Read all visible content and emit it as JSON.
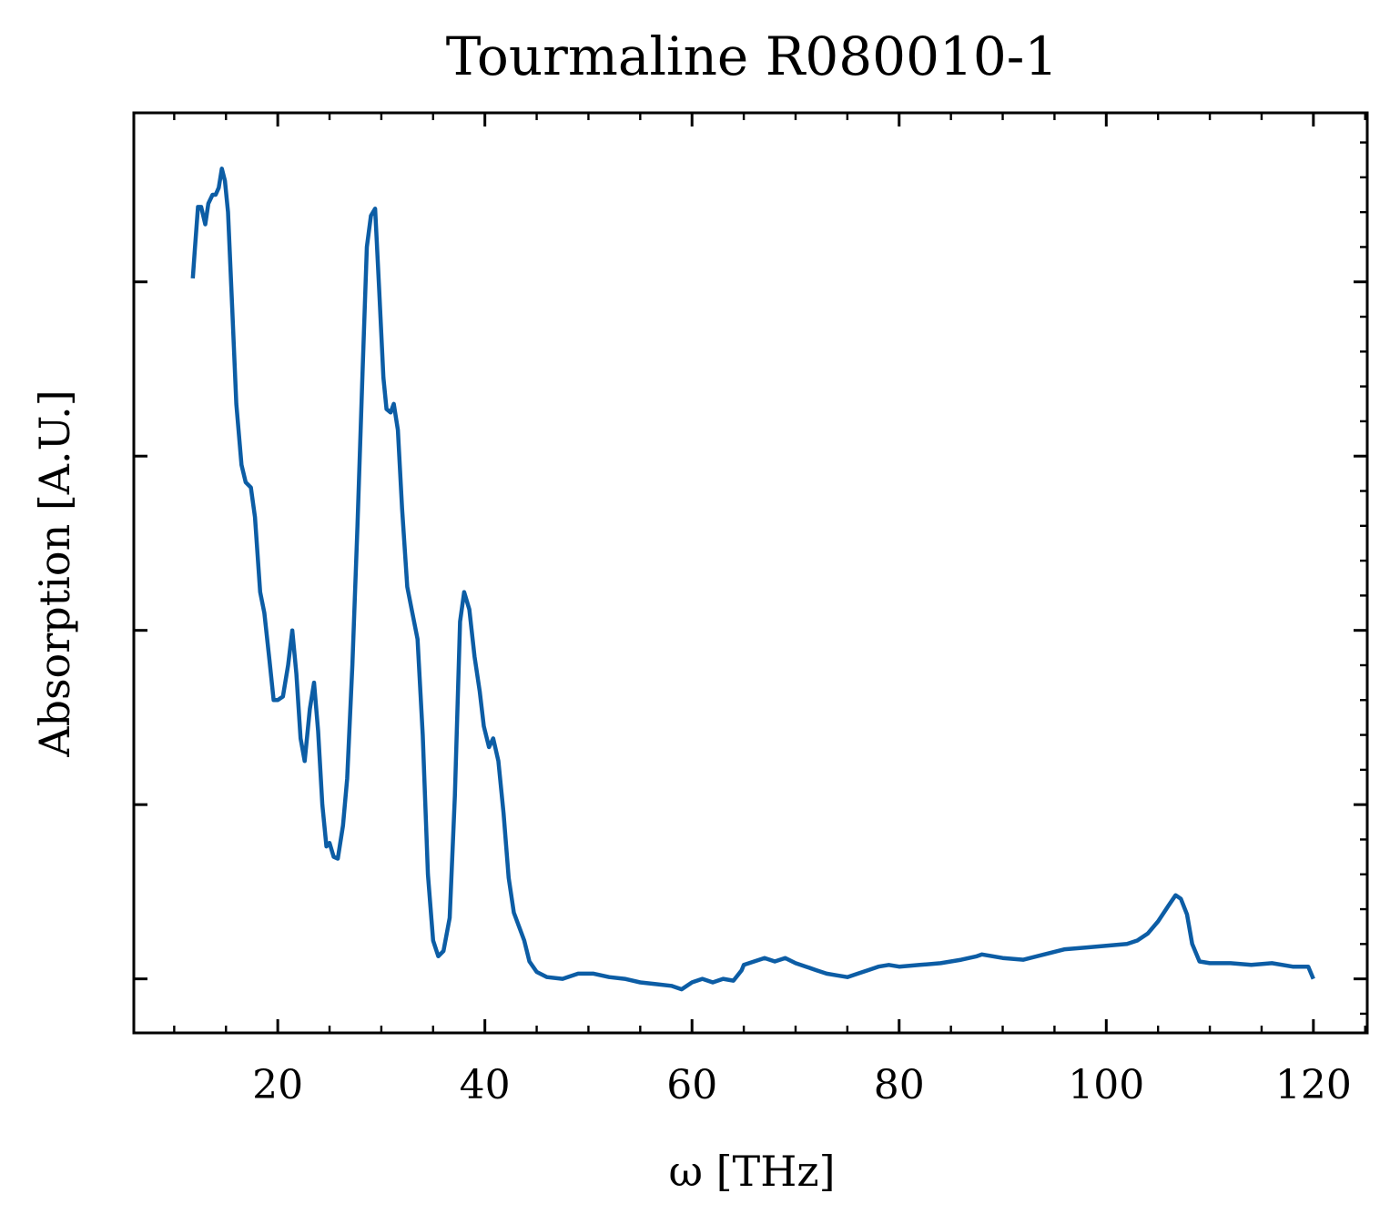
{
  "chart_data": {
    "type": "line",
    "title": "Tourmaline R080010-1",
    "xlabel": "ω [THz]",
    "ylabel": "Absorption [A.U.]",
    "xlim": [
      6.1,
      125.2
    ],
    "ylim": [
      -0.31,
      4.97
    ],
    "x_ticks": [
      20,
      40,
      60,
      80,
      100,
      120
    ],
    "x_tick_labels": [
      "20",
      "40",
      "60",
      "80",
      "100",
      "120"
    ],
    "x_minor_step": 5,
    "y_ticks": [
      0,
      1,
      2,
      3,
      4
    ],
    "y_minor_step": 0.2,
    "y_tick_labels_shown": false,
    "grid": false,
    "legend": "none",
    "series": [
      {
        "color": "#0C5DA5",
        "x": [
          11.8,
          12.0,
          12.3,
          12.6,
          13.0,
          13.3,
          13.7,
          14.0,
          14.3,
          14.6,
          14.9,
          15.2,
          15.6,
          16.0,
          16.5,
          16.9,
          17.4,
          17.8,
          18.3,
          18.7,
          19.2,
          19.6,
          20.0,
          20.5,
          21.0,
          21.4,
          21.8,
          22.2,
          22.6,
          23.1,
          23.5,
          23.9,
          24.3,
          24.7,
          25.0,
          25.4,
          25.8,
          26.3,
          26.7,
          27.2,
          27.7,
          28.2,
          28.6,
          29.0,
          29.4,
          29.8,
          30.2,
          30.5,
          30.9,
          31.2,
          31.6,
          32.0,
          32.5,
          33.0,
          33.5,
          34.0,
          34.5,
          35.0,
          35.5,
          36.0,
          36.6,
          37.1,
          37.6,
          38.0,
          38.5,
          39.0,
          39.5,
          39.9,
          40.4,
          40.8,
          41.3,
          41.8,
          42.3,
          42.8,
          43.3,
          43.8,
          44.3,
          45.0,
          46.0,
          47.5,
          49.0,
          50.5,
          52.0,
          53.5,
          55.0,
          56.5,
          58.0,
          59.0,
          60.0,
          61.0,
          62.0,
          63.0,
          64.0,
          64.8,
          65.0,
          66.0,
          67.0,
          68.0,
          69.0,
          70.0,
          71.0,
          72.0,
          73.0,
          74.0,
          75.0,
          76.0,
          77.0,
          78.0,
          79.0,
          80.0,
          82.0,
          84.0,
          86.0,
          87.5,
          88.0,
          90.0,
          92.0,
          94.0,
          96.0,
          98.0,
          100.0,
          102.0,
          103.0,
          104.0,
          105.0,
          106.0,
          106.7,
          107.2,
          107.8,
          108.3,
          109.0,
          110.0,
          112.0,
          114.0,
          116.0,
          118.0,
          119.5,
          120.0
        ],
        "y": [
          4.02,
          4.19,
          4.43,
          4.43,
          4.33,
          4.45,
          4.5,
          4.5,
          4.54,
          4.65,
          4.58,
          4.4,
          3.85,
          3.3,
          2.95,
          2.85,
          2.82,
          2.65,
          2.22,
          2.1,
          1.83,
          1.6,
          1.6,
          1.62,
          1.8,
          2.0,
          1.75,
          1.38,
          1.25,
          1.55,
          1.7,
          1.42,
          1.0,
          0.76,
          0.78,
          0.7,
          0.69,
          0.88,
          1.15,
          1.8,
          2.6,
          3.5,
          4.2,
          4.38,
          4.42,
          3.95,
          3.45,
          3.27,
          3.25,
          3.3,
          3.15,
          2.7,
          2.25,
          2.1,
          1.95,
          1.4,
          0.6,
          0.22,
          0.13,
          0.16,
          0.35,
          1.05,
          2.05,
          2.22,
          2.12,
          1.85,
          1.65,
          1.45,
          1.33,
          1.38,
          1.25,
          0.95,
          0.58,
          0.38,
          0.3,
          0.22,
          0.1,
          0.04,
          0.01,
          0.0,
          0.03,
          0.03,
          0.01,
          0.0,
          -0.02,
          -0.03,
          -0.04,
          -0.06,
          -0.02,
          0.0,
          -0.02,
          0.0,
          -0.01,
          0.05,
          0.08,
          0.1,
          0.12,
          0.1,
          0.12,
          0.09,
          0.07,
          0.05,
          0.03,
          0.02,
          0.01,
          0.03,
          0.05,
          0.07,
          0.08,
          0.07,
          0.08,
          0.09,
          0.11,
          0.13,
          0.14,
          0.12,
          0.11,
          0.14,
          0.17,
          0.18,
          0.19,
          0.2,
          0.22,
          0.26,
          0.33,
          0.42,
          0.48,
          0.46,
          0.37,
          0.2,
          0.1,
          0.09,
          0.09,
          0.08,
          0.09,
          0.07,
          0.07,
          0.0
        ]
      }
    ]
  }
}
